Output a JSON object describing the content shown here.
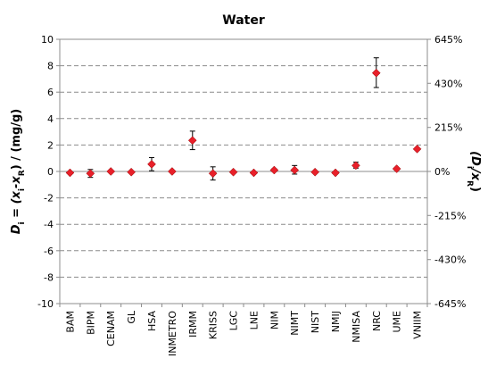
{
  "chart_data": {
    "type": "scatter",
    "title": "Water",
    "ylabel_left": "Di = (xi-xR) / (mg/g)",
    "ylabel_left_parts": [
      "D",
      "i",
      " = (x",
      "i",
      "-x",
      "R",
      ") / (mg/g)"
    ],
    "ylabel_right": "(Di/xR)",
    "ylabel_right_parts": [
      "(D",
      "i",
      "/x",
      "R",
      ")"
    ],
    "ylim": [
      -10,
      10
    ],
    "yticks": [
      -10,
      -8,
      -6,
      -4,
      -2,
      0,
      2,
      4,
      6,
      8,
      10
    ],
    "right_ticks": [
      {
        "y": 10,
        "label": "645%"
      },
      {
        "y": 6.67,
        "label": "430%"
      },
      {
        "y": 3.33,
        "label": "215%"
      },
      {
        "y": 0,
        "label": "0%"
      },
      {
        "y": -3.33,
        "label": "-215%"
      },
      {
        "y": -6.67,
        "label": "-430%"
      },
      {
        "y": -10,
        "label": "-645%"
      }
    ],
    "grid": true,
    "categories": [
      "BAM",
      "BIPM",
      "CENAM",
      "GL",
      "HSA",
      "INMETRO",
      "IRMM",
      "KRISS",
      "LGC",
      "LNE",
      "NIM",
      "NIMT",
      "NIST",
      "NMIJ",
      "NMISA",
      "NRC",
      "UME",
      "VNIIM"
    ],
    "values": [
      -0.1,
      -0.15,
      0.0,
      -0.05,
      0.55,
      0.0,
      2.35,
      -0.15,
      -0.05,
      -0.1,
      0.1,
      0.1,
      -0.05,
      -0.1,
      0.45,
      7.45,
      0.2,
      1.7
    ],
    "error_low": [
      -0.15,
      -0.45,
      0.0,
      -0.1,
      0.05,
      0.0,
      1.65,
      -0.65,
      -0.1,
      -0.1,
      0.0,
      -0.2,
      -0.1,
      -0.1,
      0.25,
      6.35,
      0.2,
      1.7
    ],
    "error_high": [
      -0.05,
      0.15,
      0.0,
      0.0,
      1.05,
      0.0,
      3.05,
      0.35,
      0.0,
      -0.1,
      0.2,
      0.45,
      0.0,
      -0.1,
      0.7,
      8.6,
      0.2,
      1.7
    ],
    "marker_color": "#e8202a"
  }
}
